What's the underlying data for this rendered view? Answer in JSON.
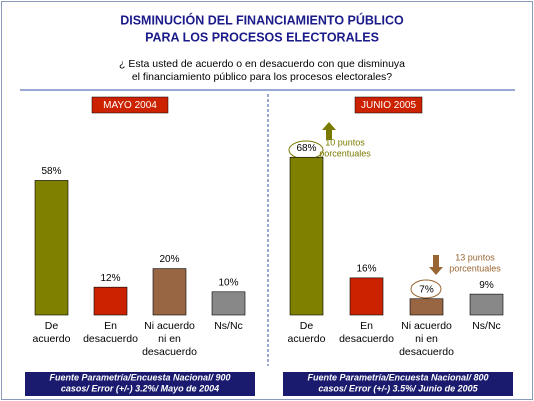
{
  "title": [
    "DISMINUCIÓN DEL FINANCIAMIENTO PÚBLICO",
    "PARA LOS PROCESOS ELECTORALES"
  ],
  "question": [
    "¿ Esta usted de acuerdo o en desacuerdo con que disminuya",
    "el financiamiento público para los procesos electorales?"
  ],
  "chart_data": [
    {
      "type": "bar",
      "subtitle": "MAYO 2004",
      "categories": [
        [
          "De",
          "acuerdo"
        ],
        [
          "En",
          "desacuerdo"
        ],
        [
          "Ni acuerdo",
          "ni en",
          "desacuerdo"
        ],
        [
          "Ns/Nc"
        ]
      ],
      "values": [
        58,
        12,
        20,
        10
      ],
      "value_labels": [
        "58%",
        "12%",
        "20%",
        "10%"
      ],
      "colors": [
        "#808000",
        "#cc2200",
        "#996644",
        "#888888"
      ],
      "source": [
        "Fuente Parametría/Encuesta Nacional/ 900",
        "casos/ Error (+/-) 3.2%/ Mayo de 2004"
      ]
    },
    {
      "type": "bar",
      "subtitle": "JUNIO 2005",
      "categories": [
        [
          "De",
          "acuerdo"
        ],
        [
          "En",
          "desacuerdo"
        ],
        [
          "Ni acuerdo",
          "ni en",
          "desacuerdo"
        ],
        [
          "Ns/Nc"
        ]
      ],
      "values": [
        68,
        16,
        7,
        9
      ],
      "value_labels": [
        "68%",
        "16%",
        "7%",
        "9%"
      ],
      "colors": [
        "#808000",
        "#cc2200",
        "#996644",
        "#888888"
      ],
      "annotations": [
        {
          "text": [
            "10 puntos",
            "porcentuales"
          ],
          "color": "#7a7a00"
        },
        {
          "text": [
            "13 puntos",
            "porcentuales"
          ],
          "color": "#996633"
        }
      ],
      "source": [
        "Fuente Parametría/Encuesta Nacional/ 800",
        "casos/ Error (+/-) 3.5%/ Junio de 2005"
      ]
    }
  ]
}
